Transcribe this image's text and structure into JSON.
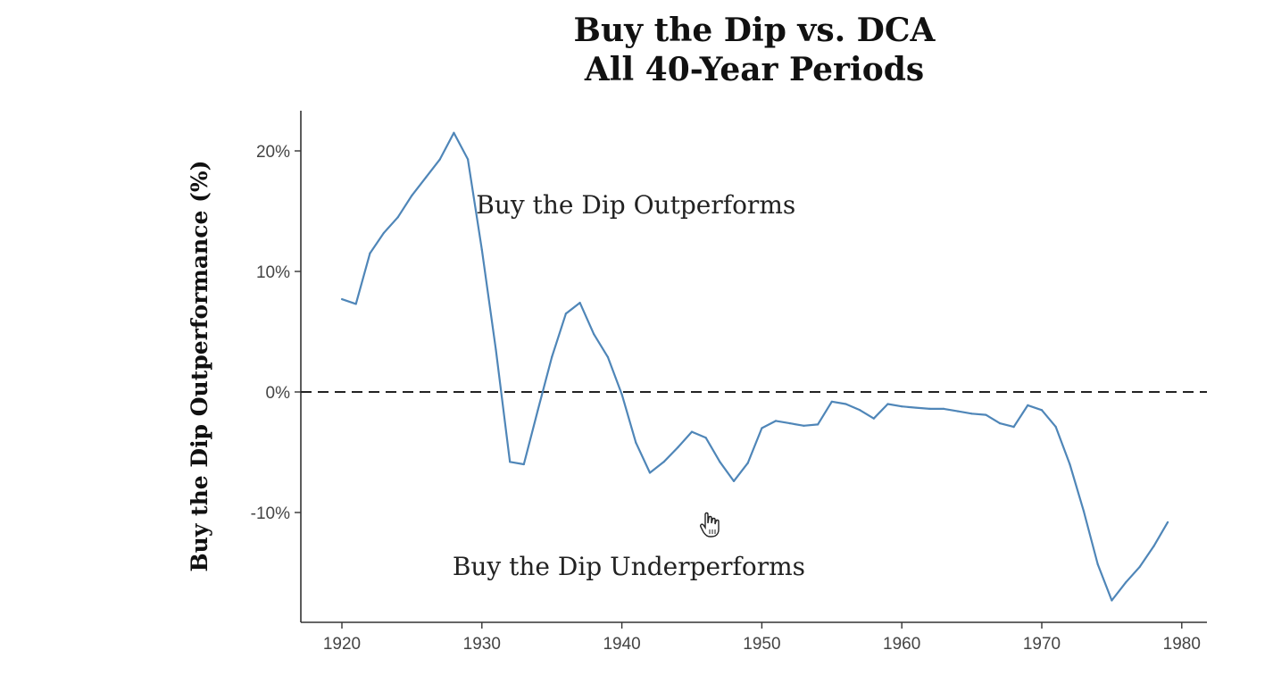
{
  "chart_data": {
    "type": "line",
    "title_lines": [
      "Buy the Dip vs. DCA",
      "All 40-Year Periods"
    ],
    "xlabel": "",
    "ylabel": "Buy the Dip Outperformance (%)",
    "xlim": [
      1917,
      1982
    ],
    "ylim": [
      -19,
      23.5
    ],
    "x_ticks": [
      1920,
      1930,
      1940,
      1950,
      1960,
      1970,
      1980
    ],
    "x_tick_labels": [
      "1920",
      "1930",
      "1940",
      "1950",
      "1960",
      "1970",
      "1980"
    ],
    "y_ticks": [
      20,
      10,
      0,
      -10
    ],
    "y_tick_labels": [
      "20%",
      "10%",
      "0%",
      "-10%"
    ],
    "reference_line": {
      "y": 0,
      "style": "dashed"
    },
    "annotations": [
      {
        "text": "Buy the Dip Outperforms",
        "x": 1941,
        "y": 14.8
      },
      {
        "text": "Buy the Dip Underperforms",
        "x": 1940.5,
        "y": -15.2
      }
    ],
    "series": [
      {
        "color": "#4f86b8",
        "x": [
          1920,
          1921,
          1922,
          1923,
          1924,
          1925,
          1926,
          1927,
          1928,
          1929,
          1930,
          1931,
          1932,
          1933,
          1934,
          1935,
          1936,
          1937,
          1938,
          1939,
          1940,
          1941,
          1942,
          1943,
          1944,
          1945,
          1946,
          1947,
          1948,
          1949,
          1950,
          1951,
          1952,
          1953,
          1954,
          1955,
          1956,
          1957,
          1958,
          1959,
          1960,
          1961,
          1962,
          1963,
          1964,
          1965,
          1966,
          1967,
          1968,
          1969,
          1970,
          1971,
          1972,
          1973,
          1974,
          1975,
          1976,
          1977,
          1978,
          1979
        ],
        "y": [
          7.7,
          7.3,
          11.5,
          13.2,
          14.5,
          16.3,
          17.8,
          19.3,
          21.5,
          19.3,
          11.8,
          3.5,
          -5.8,
          -6.0,
          -1.5,
          2.9,
          6.5,
          7.4,
          4.8,
          2.9,
          -0.2,
          -4.2,
          -6.7,
          -5.8,
          -4.6,
          -3.3,
          -3.8,
          -5.8,
          -7.4,
          -5.9,
          -3.0,
          -2.4,
          -2.6,
          -2.8,
          -2.7,
          -0.8,
          -1.0,
          -1.5,
          -2.2,
          -1.0,
          -1.2,
          -1.3,
          -1.4,
          -1.4,
          -1.6,
          -1.8,
          -1.9,
          -2.6,
          -2.9,
          -1.1,
          -1.5,
          -2.9,
          -6.0,
          -9.9,
          -14.3,
          -17.3,
          -15.8,
          -14.5,
          -12.8,
          -10.8
        ]
      }
    ]
  }
}
